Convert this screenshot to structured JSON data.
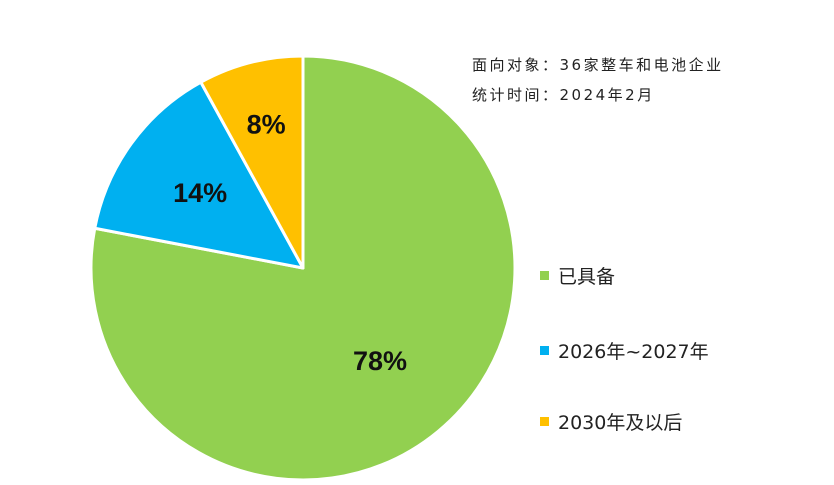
{
  "notes": {
    "audience": "面向对象：36家整车和电池企业",
    "period": "统计时间：2024年2月"
  },
  "chart_data": {
    "type": "pie",
    "start_angle_deg": 0,
    "direction": "clockwise",
    "slices": [
      {
        "name": "已具备",
        "value": 78,
        "label": "78%",
        "color": "#92d050"
      },
      {
        "name": "2026年~2027年",
        "value": 14,
        "label": "14%",
        "color": "#00b0f0"
      },
      {
        "name": "2030年及以后",
        "value": 8,
        "label": "8%",
        "color": "#ffc000"
      }
    ],
    "legend": "right"
  }
}
